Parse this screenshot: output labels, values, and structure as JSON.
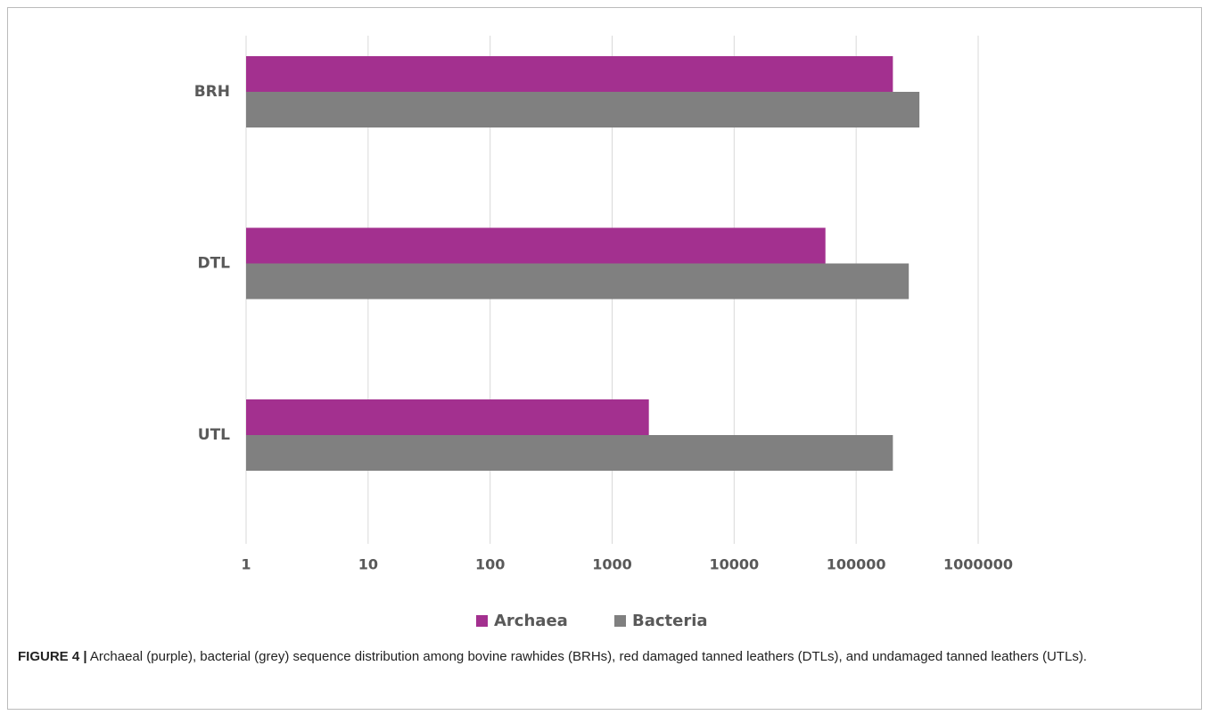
{
  "chart_data": {
    "type": "bar",
    "orientation": "horizontal",
    "categories": [
      "BRH",
      "DTL",
      "UTL"
    ],
    "series": [
      {
        "name": "Archaea",
        "color": "#a3308f",
        "values": [
          200000,
          56000,
          2000
        ]
      },
      {
        "name": "Bacteria",
        "color": "#808080",
        "values": [
          330000,
          270000,
          200000
        ]
      }
    ],
    "xscale": "log",
    "xlim": [
      1,
      1000000
    ],
    "xticks": [
      1,
      10,
      100,
      1000,
      10000,
      100000,
      1000000
    ],
    "grid": true,
    "legend": "bottom"
  },
  "caption": {
    "label": "FIGURE 4 |",
    "text": "Archaeal (purple), bacterial (grey) sequence distribution among bovine rawhides (BRHs), red damaged tanned leathers (DTLs), and undamaged tanned leathers (UTLs)."
  }
}
